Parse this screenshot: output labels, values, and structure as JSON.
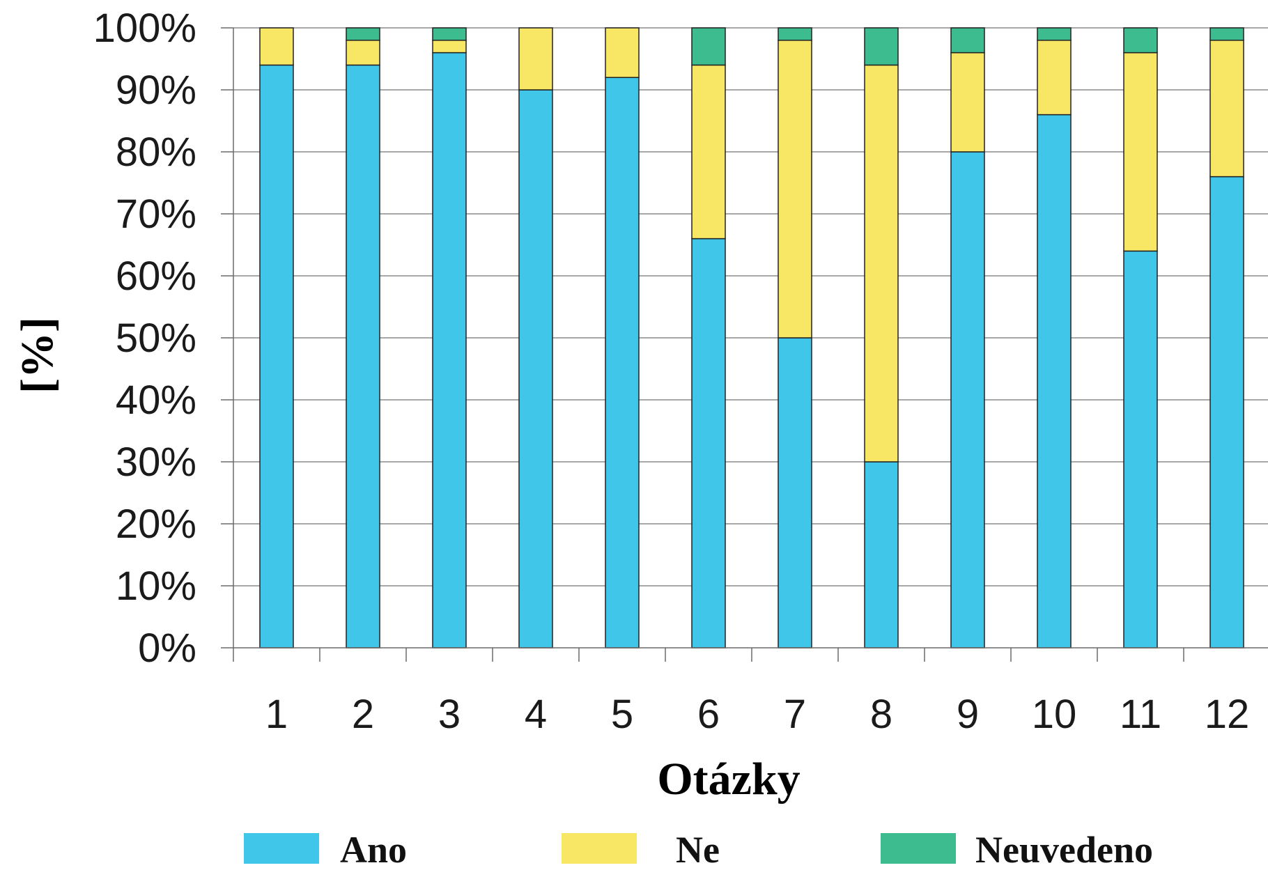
{
  "chart_data": {
    "type": "bar",
    "stacked": true,
    "title": "",
    "xlabel": "Otázky",
    "ylabel": "[%]",
    "ylim": [
      0,
      100
    ],
    "y_ticks": [
      "0%",
      "10%",
      "20%",
      "30%",
      "40%",
      "50%",
      "60%",
      "70%",
      "80%",
      "90%",
      "100%"
    ],
    "grid": "horizontal",
    "legend_position": "bottom",
    "categories": [
      "1",
      "2",
      "3",
      "4",
      "5",
      "6",
      "7",
      "8",
      "9",
      "10",
      "11",
      "12"
    ],
    "series": [
      {
        "name": "Ano",
        "color": "#3fc6e8",
        "values": [
          94,
          94,
          96,
          90,
          92,
          66,
          50,
          30,
          80,
          86,
          64,
          76
        ]
      },
      {
        "name": "Ne",
        "color": "#f7e765",
        "values": [
          6,
          4,
          2,
          10,
          8,
          28,
          48,
          64,
          16,
          12,
          32,
          22
        ]
      },
      {
        "name": "Neuvedeno",
        "color": "#3dbd8f",
        "values": [
          0,
          2,
          2,
          0,
          0,
          6,
          2,
          6,
          4,
          2,
          4,
          2
        ]
      }
    ]
  }
}
